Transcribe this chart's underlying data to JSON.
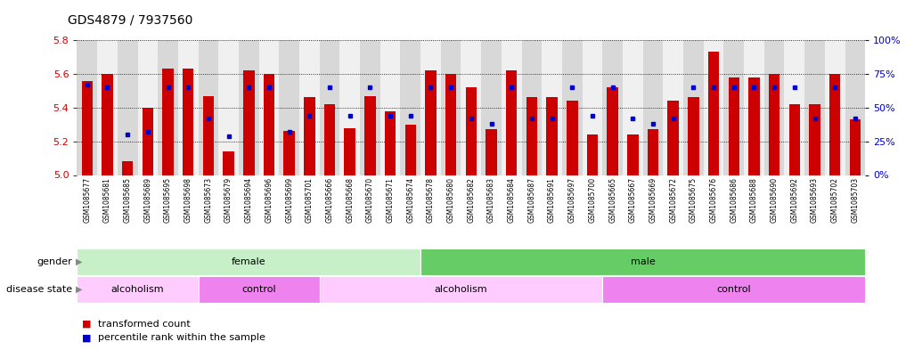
{
  "title": "GDS4879 / 7937560",
  "samples": [
    "GSM1085677",
    "GSM1085681",
    "GSM1085685",
    "GSM1085689",
    "GSM1085695",
    "GSM1085698",
    "GSM1085673",
    "GSM1085679",
    "GSM1085694",
    "GSM1085696",
    "GSM1085699",
    "GSM1085701",
    "GSM1085666",
    "GSM1085668",
    "GSM1085670",
    "GSM1085671",
    "GSM1085674",
    "GSM1085678",
    "GSM1085680",
    "GSM1085682",
    "GSM1085683",
    "GSM1085684",
    "GSM1085687",
    "GSM1085691",
    "GSM1085697",
    "GSM1085700",
    "GSM1085665",
    "GSM1085667",
    "GSM1085669",
    "GSM1085672",
    "GSM1085675",
    "GSM1085676",
    "GSM1085686",
    "GSM1085688",
    "GSM1085690",
    "GSM1085692",
    "GSM1085693",
    "GSM1085702",
    "GSM1085703"
  ],
  "bar_values": [
    5.56,
    5.6,
    5.08,
    5.4,
    5.63,
    5.63,
    5.47,
    5.14,
    5.62,
    5.6,
    5.26,
    5.46,
    5.42,
    5.28,
    5.47,
    5.38,
    5.3,
    5.62,
    5.6,
    5.52,
    5.27,
    5.62,
    5.46,
    5.46,
    5.44,
    5.24,
    5.52,
    5.24,
    5.27,
    5.44,
    5.46,
    5.73,
    5.58,
    5.58,
    5.6,
    5.42,
    5.42,
    5.6,
    5.33
  ],
  "percentile_values": [
    0.67,
    0.65,
    0.3,
    0.32,
    0.65,
    0.65,
    0.42,
    0.29,
    0.65,
    0.65,
    0.32,
    0.44,
    0.65,
    0.44,
    0.65,
    0.44,
    0.44,
    0.65,
    0.65,
    0.42,
    0.38,
    0.65,
    0.42,
    0.42,
    0.65,
    0.44,
    0.65,
    0.42,
    0.38,
    0.42,
    0.65,
    0.65,
    0.65,
    0.65,
    0.65,
    0.65,
    0.42,
    0.65,
    0.42
  ],
  "ymin": 5.0,
  "ymax": 5.8,
  "yticks": [
    5.0,
    5.2,
    5.4,
    5.6,
    5.8
  ],
  "right_yticks_perc": [
    0,
    25,
    50,
    75,
    100
  ],
  "right_yticklabels": [
    "0%",
    "25%",
    "50%",
    "75%",
    "100%"
  ],
  "bar_color": "#cc0000",
  "dot_color": "#0000cc",
  "left_axis_color": "#cc0000",
  "right_axis_color": "#0000cc",
  "gender_groups": [
    {
      "label": "female",
      "start": 0,
      "end": 17,
      "color": "#c8f0c8"
    },
    {
      "label": "male",
      "start": 17,
      "end": 39,
      "color": "#66cc66"
    }
  ],
  "disease_groups": [
    {
      "label": "alcoholism",
      "start": 0,
      "end": 6,
      "color": "#ffccff"
    },
    {
      "label": "control",
      "start": 6,
      "end": 12,
      "color": "#ee82ee"
    },
    {
      "label": "alcoholism",
      "start": 12,
      "end": 26,
      "color": "#ffccff"
    },
    {
      "label": "control",
      "start": 26,
      "end": 39,
      "color": "#ee82ee"
    }
  ],
  "legend_items": [
    {
      "label": "transformed count",
      "color": "#cc0000"
    },
    {
      "label": "percentile rank within the sample",
      "color": "#0000cc"
    }
  ]
}
